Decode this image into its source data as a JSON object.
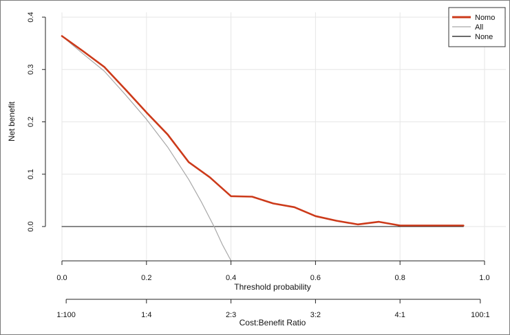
{
  "chart_data": {
    "type": "line",
    "title": "",
    "xlabel": "Threshold probability",
    "ylabel": "Net benefit",
    "xlim": [
      0.0,
      1.0
    ],
    "ylim": [
      -0.065,
      0.4
    ],
    "x_ticks": [
      "0.0",
      "0.2",
      "0.4",
      "0.6",
      "0.8",
      "1.0"
    ],
    "y_ticks": [
      "0.0",
      "0.1",
      "0.2",
      "0.3",
      "0.4"
    ],
    "x_tick_values": [
      0.0,
      0.2,
      0.4,
      0.6,
      0.8,
      1.0
    ],
    "y_tick_values": [
      0.0,
      0.1,
      0.2,
      0.3,
      0.4
    ],
    "secondary_axis": {
      "label": "Cost:Benefit Ratio",
      "ticks": [
        "1:100",
        "1:4",
        "2:3",
        "3:2",
        "4:1",
        "100:1"
      ],
      "tick_positions": [
        0.01,
        0.2,
        0.4,
        0.6,
        0.8,
        0.99
      ]
    },
    "grid": true,
    "legend_position": "top-right",
    "series": [
      {
        "name": "Nomo",
        "color": "#cc3a1a",
        "points": [
          [
            0.0,
            0.364
          ],
          [
            0.05,
            0.335
          ],
          [
            0.1,
            0.305
          ],
          [
            0.15,
            0.262
          ],
          [
            0.2,
            0.218
          ],
          [
            0.25,
            0.176
          ],
          [
            0.3,
            0.123
          ],
          [
            0.35,
            0.094
          ],
          [
            0.4,
            0.058
          ],
          [
            0.45,
            0.057
          ],
          [
            0.5,
            0.044
          ],
          [
            0.55,
            0.037
          ],
          [
            0.6,
            0.02
          ],
          [
            0.65,
            0.011
          ],
          [
            0.7,
            0.004
          ],
          [
            0.75,
            0.009
          ],
          [
            0.8,
            0.002
          ],
          [
            0.85,
            0.002
          ],
          [
            0.9,
            0.002
          ],
          [
            0.95,
            0.002
          ]
        ]
      },
      {
        "name": "All",
        "color": "#a8a8a8",
        "points": [
          [
            0.0,
            0.364
          ],
          [
            0.05,
            0.33
          ],
          [
            0.1,
            0.297
          ],
          [
            0.15,
            0.252
          ],
          [
            0.2,
            0.205
          ],
          [
            0.25,
            0.152
          ],
          [
            0.3,
            0.09
          ],
          [
            0.33,
            0.047
          ],
          [
            0.36,
            0.0
          ],
          [
            0.38,
            -0.035
          ],
          [
            0.4,
            -0.065
          ]
        ]
      },
      {
        "name": "None",
        "color": "#111111",
        "points": [
          [
            0.0,
            0.0
          ],
          [
            0.95,
            0.0
          ]
        ]
      }
    ]
  }
}
